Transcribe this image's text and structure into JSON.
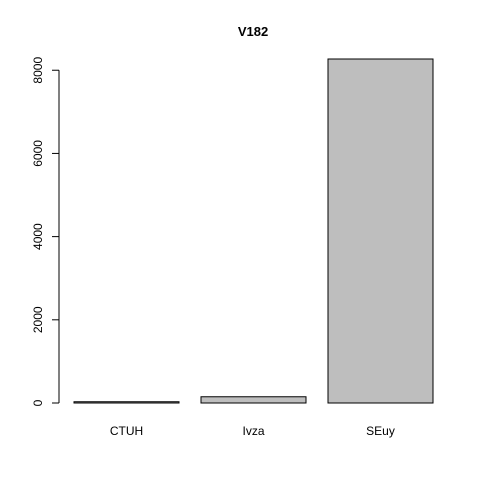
{
  "chart_data": {
    "type": "bar",
    "title": "V182",
    "categories": [
      "CTUH",
      "Ivza",
      "SEuy"
    ],
    "values": [
      30,
      150,
      8270
    ],
    "ylim": [
      0,
      8270
    ],
    "yticks": [
      0,
      2000,
      4000,
      6000,
      8000
    ],
    "ytick_labels": [
      "0",
      "2000",
      "4000",
      "6000",
      "8000"
    ],
    "xlabel": "",
    "ylabel": "",
    "grid": false,
    "bar_color": "#bebebe",
    "bar_edge_color": "#000000"
  }
}
